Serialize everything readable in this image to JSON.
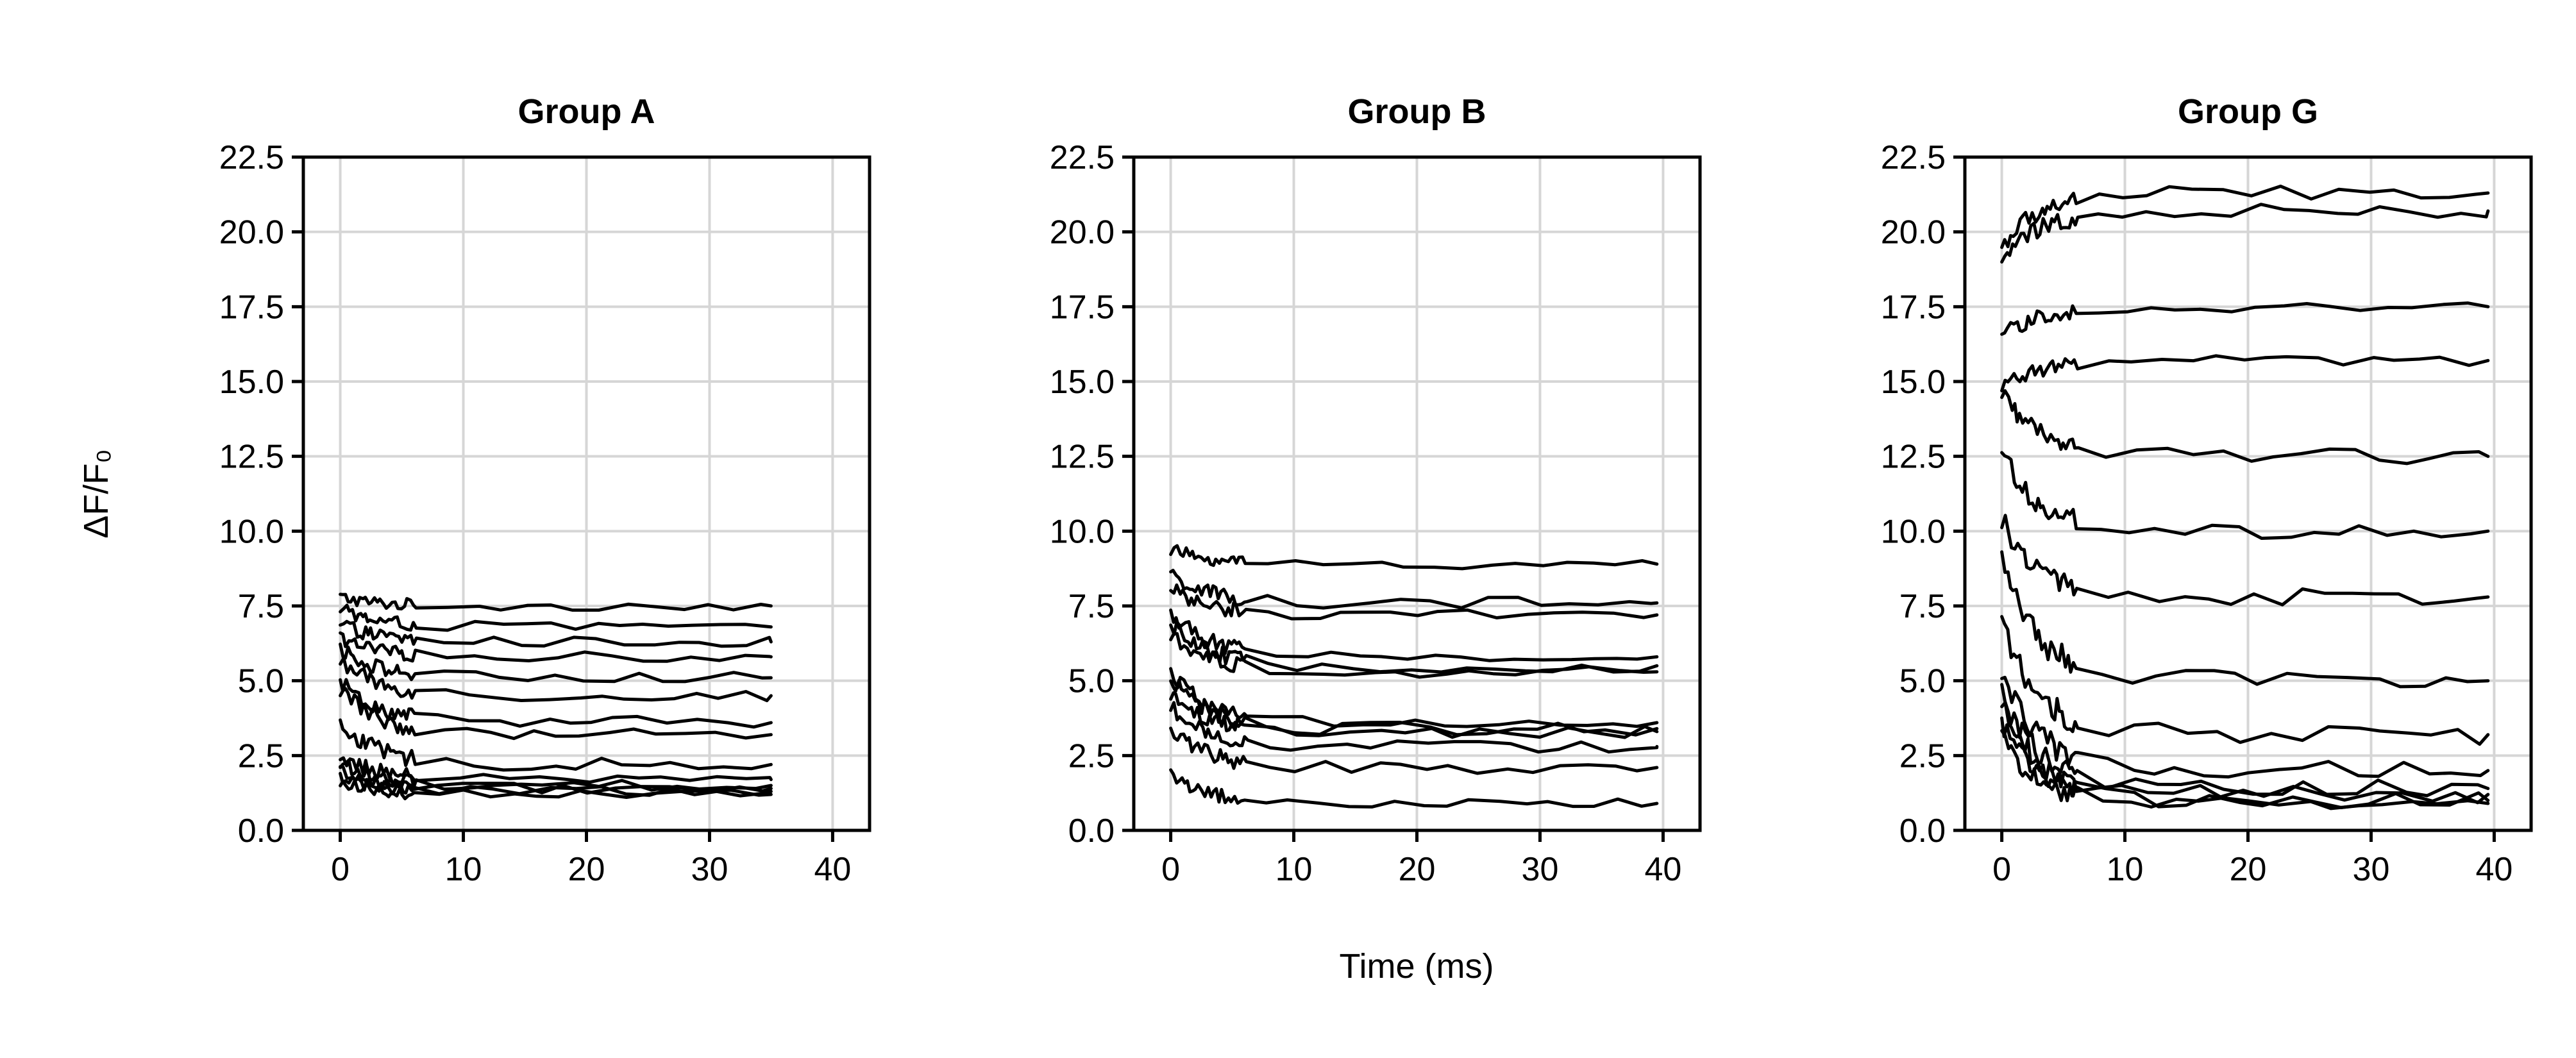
{
  "figure": {
    "ylabel": "ΔF/F₀",
    "xlabel": "Time (ms)"
  },
  "chart_data": [
    {
      "type": "line",
      "title": "Group A",
      "xlim": [
        -3,
        43
      ],
      "ylim": [
        0,
        22.5
      ],
      "xticks": [
        0,
        10,
        20,
        30,
        40
      ],
      "yticks": [
        0.0,
        2.5,
        5.0,
        7.5,
        10.0,
        12.5,
        15.0,
        17.5,
        20.0,
        22.5
      ],
      "grid": true,
      "series": [
        {
          "start": 7.8,
          "end": 7.5
        },
        {
          "start": 7.4,
          "end": 6.8
        },
        {
          "start": 6.9,
          "end": 6.3
        },
        {
          "start": 6.4,
          "end": 5.8
        },
        {
          "start": 6.1,
          "end": 5.1
        },
        {
          "start": 5.7,
          "end": 4.5
        },
        {
          "start": 5.0,
          "end": 3.6
        },
        {
          "start": 4.8,
          "end": 3.2
        },
        {
          "start": 3.6,
          "end": 2.2
        },
        {
          "start": 2.5,
          "end": 1.7
        },
        {
          "start": 2.3,
          "end": 1.5
        },
        {
          "start": 2.0,
          "end": 1.4
        },
        {
          "start": 1.8,
          "end": 1.3
        },
        {
          "start": 1.6,
          "end": 1.2
        }
      ]
    },
    {
      "type": "line",
      "title": "Group B",
      "xlim": [
        -3,
        43
      ],
      "ylim": [
        0,
        22.5
      ],
      "xticks": [
        0,
        10,
        20,
        30,
        40
      ],
      "yticks": [
        0.0,
        2.5,
        5.0,
        7.5,
        10.0,
        12.5,
        15.0,
        17.5,
        20.0,
        22.5
      ],
      "grid": true,
      "series": [
        {
          "start": 9.4,
          "end": 8.9
        },
        {
          "start": 8.6,
          "end": 7.6
        },
        {
          "start": 8.1,
          "end": 7.2
        },
        {
          "start": 7.3,
          "end": 5.8
        },
        {
          "start": 6.9,
          "end": 5.5
        },
        {
          "start": 6.6,
          "end": 5.3
        },
        {
          "start": 5.3,
          "end": 3.6
        },
        {
          "start": 5.1,
          "end": 3.4
        },
        {
          "start": 4.6,
          "end": 3.3
        },
        {
          "start": 4.1,
          "end": 2.8
        },
        {
          "start": 3.4,
          "end": 2.1
        },
        {
          "start": 1.9,
          "end": 0.9
        }
      ]
    },
    {
      "type": "line",
      "title": "Group G",
      "xlim": [
        -3,
        43
      ],
      "ylim": [
        0,
        22.5
      ],
      "xticks": [
        0,
        10,
        20,
        30,
        40
      ],
      "yticks": [
        0.0,
        2.5,
        5.0,
        7.5,
        10.0,
        12.5,
        15.0,
        17.5,
        20.0,
        22.5
      ],
      "grid": true,
      "series": [
        {
          "start": 19.5,
          "end": 21.3
        },
        {
          "start": 19.0,
          "end": 20.7
        },
        {
          "start": 16.5,
          "end": 17.5
        },
        {
          "start": 14.8,
          "end": 15.7
        },
        {
          "start": 14.6,
          "end": 12.5
        },
        {
          "start": 12.6,
          "end": 10.0
        },
        {
          "start": 10.4,
          "end": 7.8
        },
        {
          "start": 8.9,
          "end": 5.0
        },
        {
          "start": 6.9,
          "end": 3.2
        },
        {
          "start": 5.3,
          "end": 2.0
        },
        {
          "start": 4.6,
          "end": 1.4
        },
        {
          "start": 4.2,
          "end": 1.2
        },
        {
          "start": 3.6,
          "end": 1.0
        },
        {
          "start": 3.1,
          "end": 0.9
        }
      ]
    }
  ]
}
